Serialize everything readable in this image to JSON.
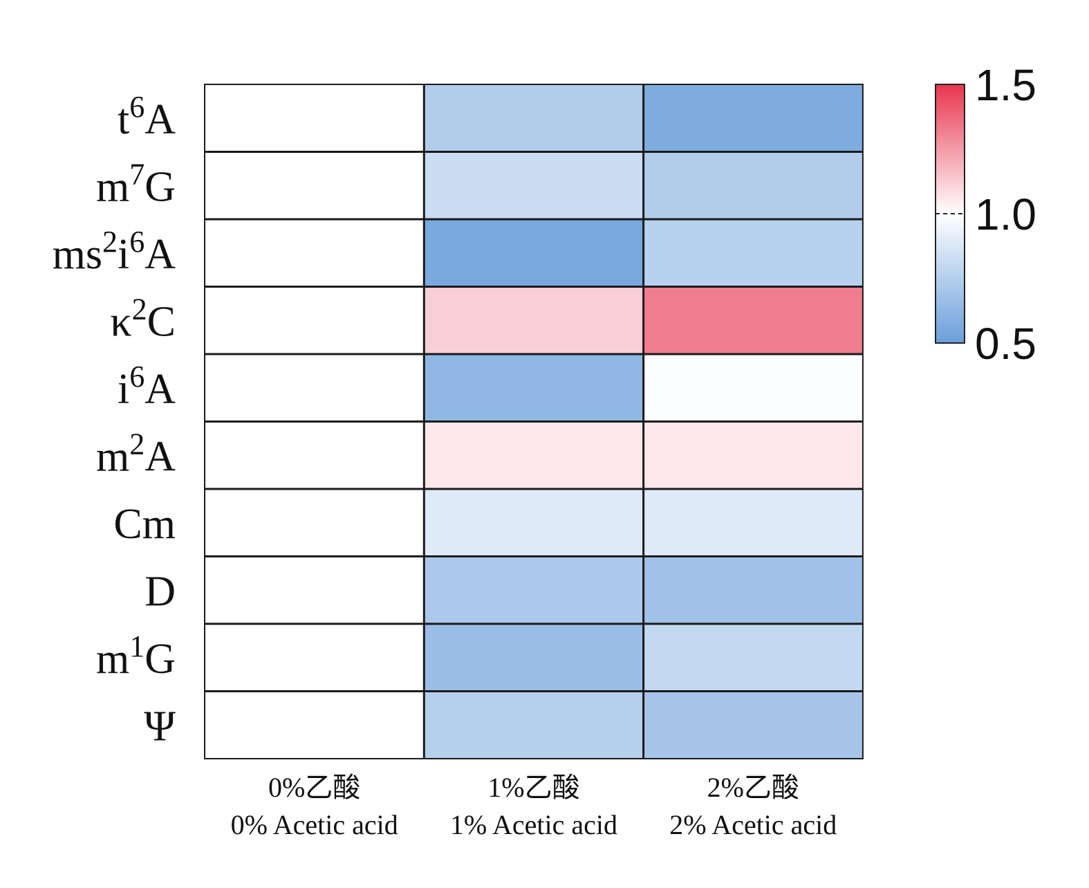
{
  "chart_data": {
    "type": "heatmap",
    "title": "",
    "rows": [
      {
        "base": "t",
        "sup": "6",
        "tail": "A"
      },
      {
        "base": "m",
        "sup": "7",
        "tail": "G"
      },
      {
        "base": "ms",
        "sup": "2",
        "tail": "i",
        "sup2": "6",
        "tail2": "A"
      },
      {
        "base": "κ",
        "sup": "2",
        "tail": "C"
      },
      {
        "base": "i",
        "sup": "6",
        "tail": "A"
      },
      {
        "base": "m",
        "sup": "2",
        "tail": "A"
      },
      {
        "base": "Cm"
      },
      {
        "base": "D"
      },
      {
        "base": "m",
        "sup": "1",
        "tail": "G"
      },
      {
        "base": "Ψ"
      }
    ],
    "columns": [
      {
        "zh": "0%乙酸",
        "en": "0% Acetic acid"
      },
      {
        "zh": "1%乙酸",
        "en": "1% Acetic acid"
      },
      {
        "zh": "2%乙酸",
        "en": "2% Acetic acid"
      }
    ],
    "values": [
      [
        1.0,
        0.74,
        0.57
      ],
      [
        1.0,
        0.82,
        0.74
      ],
      [
        1.0,
        0.55,
        0.76
      ],
      [
        1.0,
        1.12,
        1.32
      ],
      [
        1.0,
        0.63,
        0.99
      ],
      [
        1.0,
        1.06,
        1.06
      ],
      [
        1.0,
        0.89,
        0.89
      ],
      [
        1.0,
        0.72,
        0.68
      ],
      [
        1.0,
        0.66,
        0.8
      ],
      [
        1.0,
        0.75,
        0.7
      ]
    ],
    "colorbar": {
      "min": 0.5,
      "mid": 1.0,
      "max": 1.5,
      "ticks": [
        "1.5",
        "1.0",
        "0.5"
      ],
      "low_color": "#6a9fdb",
      "mid_color": "#ffffff",
      "high_color": "#e8364f"
    }
  }
}
